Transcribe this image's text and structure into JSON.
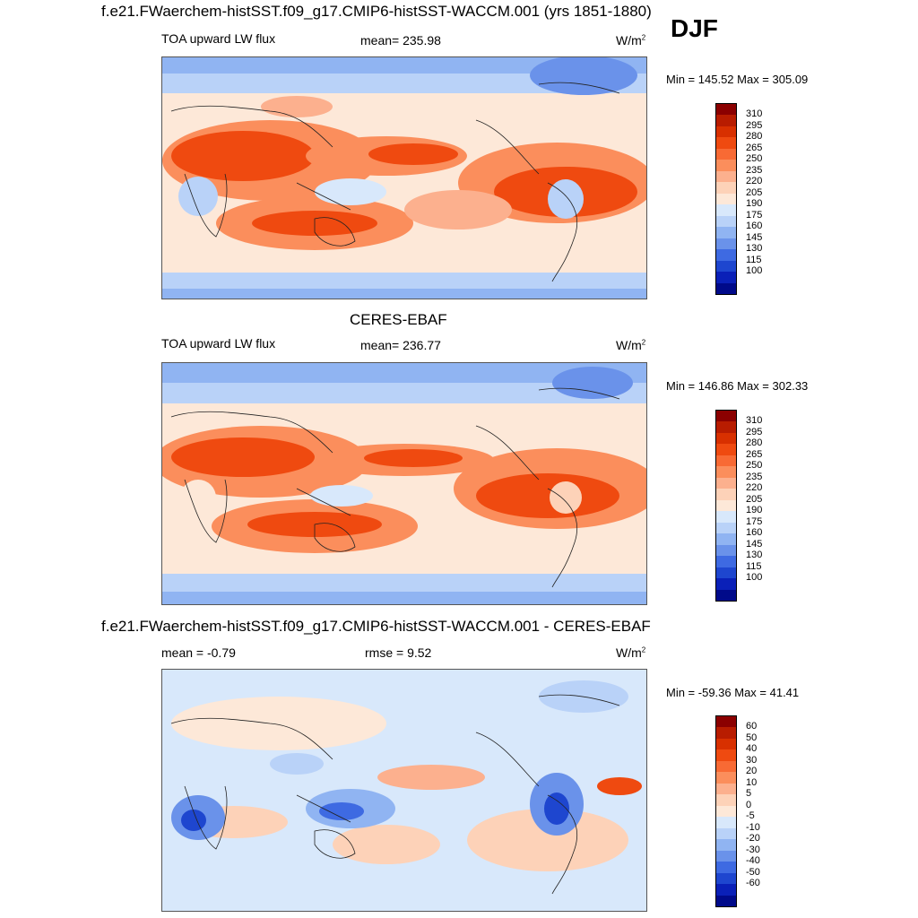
{
  "season": "DJF",
  "panels": [
    {
      "title": "f.e21.FWaerchem-histSST.f09_g17.CMIP6-histSST-WACCM.001 (yrs 1851-1880)",
      "left_label": "TOA upward LW flux",
      "center_label": "mean= 235.98",
      "units": "W/m",
      "units_sup": "2",
      "minmax": "Min = 145.52 Max = 305.09",
      "colorbar": {
        "labels": [
          "310",
          "295",
          "280",
          "265",
          "250",
          "235",
          "220",
          "205",
          "190",
          "175",
          "160",
          "145",
          "130",
          "115",
          "100"
        ],
        "colors": [
          "#8b0000",
          "#b81c00",
          "#d83000",
          "#ef4a10",
          "#f86a34",
          "#fb8e5c",
          "#fcb08e",
          "#fdd2b8",
          "#fde8d8",
          "#d8e8fb",
          "#b9d2f8",
          "#90b4f2",
          "#6a92ea",
          "#3e6ae2",
          "#1e46cf",
          "#0a20b8",
          "#000a8a"
        ]
      }
    },
    {
      "title": "CERES-EBAF",
      "left_label": "TOA upward LW flux",
      "center_label": "mean= 236.77",
      "units": "W/m",
      "units_sup": "2",
      "minmax": "Min = 146.86 Max = 302.33",
      "colorbar": {
        "labels": [
          "310",
          "295",
          "280",
          "265",
          "250",
          "235",
          "220",
          "205",
          "190",
          "175",
          "160",
          "145",
          "130",
          "115",
          "100"
        ],
        "colors": [
          "#8b0000",
          "#b81c00",
          "#d83000",
          "#ef4a10",
          "#f86a34",
          "#fb8e5c",
          "#fcb08e",
          "#fdd2b8",
          "#fde8d8",
          "#d8e8fb",
          "#b9d2f8",
          "#90b4f2",
          "#6a92ea",
          "#3e6ae2",
          "#1e46cf",
          "#0a20b8",
          "#000a8a"
        ]
      }
    },
    {
      "title": "f.e21.FWaerchem-histSST.f09_g17.CMIP6-histSST-WACCM.001 - CERES-EBAF",
      "left_label": "mean =  -0.79",
      "center_label": "rmse =   9.52",
      "units": "W/m",
      "units_sup": "2",
      "minmax": "Min = -59.36 Max =  41.41",
      "colorbar": {
        "labels": [
          "60",
          "50",
          "40",
          "30",
          "20",
          "10",
          "5",
          "0",
          "-5",
          "-10",
          "-20",
          "-30",
          "-40",
          "-50",
          "-60"
        ],
        "colors": [
          "#8b0000",
          "#b81c00",
          "#d83000",
          "#ef4a10",
          "#f86a34",
          "#fb8e5c",
          "#fcb08e",
          "#fdd2b8",
          "#fde8d8",
          "#d8e8fb",
          "#b9d2f8",
          "#90b4f2",
          "#6a92ea",
          "#3e6ae2",
          "#1e46cf",
          "#0a20b8",
          "#000a8a"
        ]
      }
    }
  ],
  "chart_data": [
    {
      "type": "heatmap",
      "title": "f.e21.FWaerchem-histSST.f09_g17.CMIP6-histSST-WACCM.001 (yrs 1851-1880)",
      "variable": "TOA upward LW flux",
      "units": "W/m2",
      "mean": 235.98,
      "min": 145.52,
      "max": 305.09,
      "contour_levels": [
        100,
        115,
        130,
        145,
        160,
        175,
        190,
        205,
        220,
        235,
        250,
        265,
        280,
        295,
        310
      ]
    },
    {
      "type": "heatmap",
      "title": "CERES-EBAF",
      "variable": "TOA upward LW flux",
      "units": "W/m2",
      "mean": 236.77,
      "min": 146.86,
      "max": 302.33,
      "contour_levels": [
        100,
        115,
        130,
        145,
        160,
        175,
        190,
        205,
        220,
        235,
        250,
        265,
        280,
        295,
        310
      ]
    },
    {
      "type": "heatmap",
      "title": "f.e21.FWaerchem-histSST.f09_g17.CMIP6-histSST-WACCM.001 - CERES-EBAF",
      "units": "W/m2",
      "mean": -0.79,
      "rmse": 9.52,
      "min": -59.36,
      "max": 41.41,
      "contour_levels": [
        -60,
        -50,
        -40,
        -30,
        -20,
        -10,
        -5,
        0,
        5,
        10,
        20,
        30,
        40,
        50,
        60
      ]
    }
  ]
}
